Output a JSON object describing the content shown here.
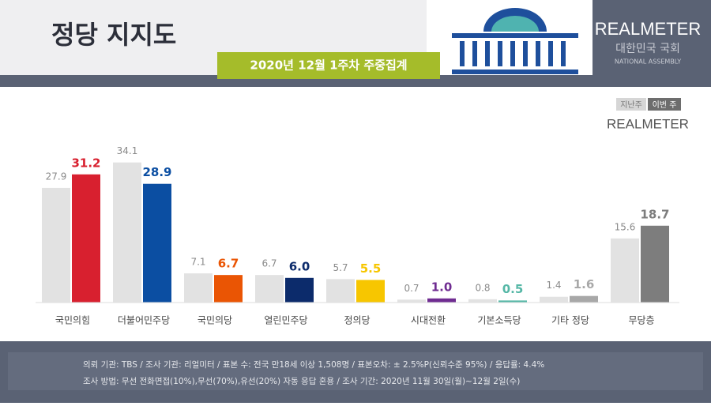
{
  "chart_data": {
    "type": "bar",
    "title": "정당 지지도",
    "subtitle": "2020년 12월 1주차 주중집계",
    "brand": "REALMETER",
    "assembly_ko": "대한민국 국회",
    "assembly_en": "NATIONAL ASSEMBLY",
    "categories": [
      "국민의힘",
      "더불어민주당",
      "국민의당",
      "열린민주당",
      "정의당",
      "시대전환",
      "기본소득당",
      "기타 정당",
      "무당층"
    ],
    "series": [
      {
        "name": "지난주",
        "color": "#e2e2e2",
        "values": [
          27.9,
          34.1,
          7.1,
          6.7,
          5.7,
          0.7,
          0.8,
          1.4,
          15.6
        ],
        "value_labels": [
          "27.9",
          "34.1",
          "7.1",
          "6.7",
          "5.7",
          "0.7",
          "0.8",
          "1.4",
          "15.6"
        ]
      },
      {
        "name": "이번 주",
        "color": "#808080",
        "colors": [
          "#d8202f",
          "#0b4ea2",
          "#ea5504",
          "#0c2b6b",
          "#f7c600",
          "#6f2c91",
          "#55b7a6",
          "#a8a8a8",
          "#7d7d7d"
        ],
        "values": [
          31.2,
          28.9,
          6.7,
          6,
          5.5,
          1,
          0.5,
          1.6,
          18.7
        ],
        "value_labels": [
          "31.2",
          "28.9",
          "6.7",
          "6.0",
          "5.5",
          "1.0",
          "0.5",
          "1.6",
          "18.7"
        ]
      }
    ],
    "notes": [
      "의뢰 기관: TBS / 조사 기관: 리얼미터 / 표본 수: 전국 만18세 이상 1,508명 / 표본오차: ± 2.5%P(신뢰수준 95%) / 응답률: 4.4%",
      "조사 방법: 무선 전화면접(10%),무선(70%),유선(20%) 자동 응답 혼용 / 조사 기간: 2020년 11월 30일(월)~12월 2일(수)"
    ]
  }
}
